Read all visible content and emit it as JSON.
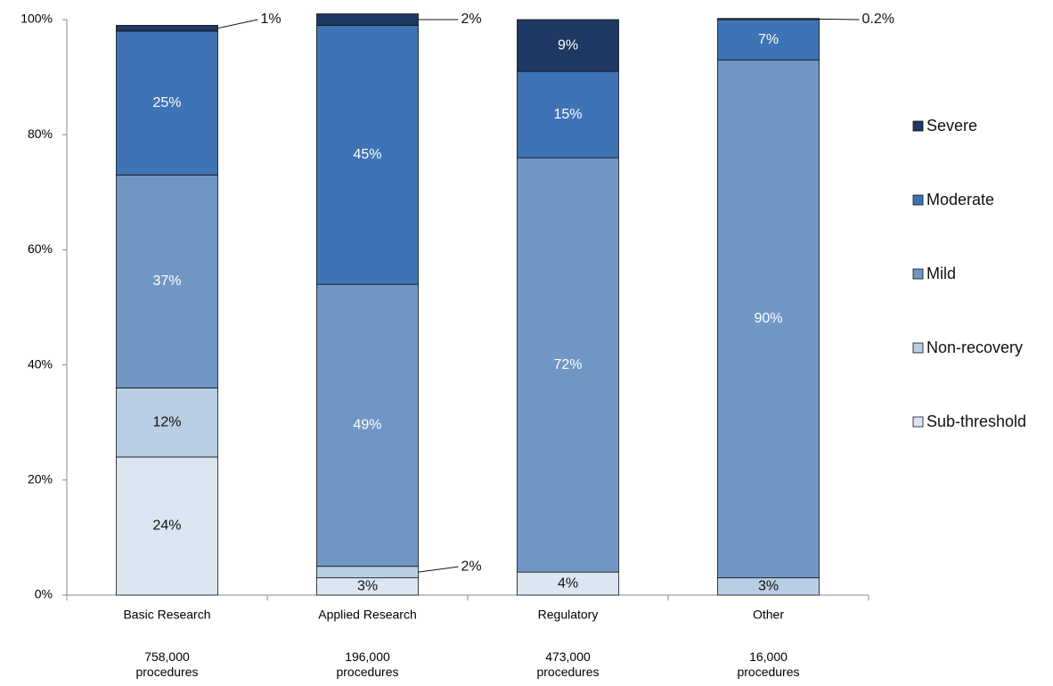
{
  "chart_data": {
    "type": "stacked_bar",
    "categories": [
      "Basic Research",
      "Applied Research",
      "Regulatory",
      "Other"
    ],
    "category_notes": [
      "758,000 procedures",
      "196,000 procedures",
      "473,000 procedures",
      "16,000 procedures"
    ],
    "series": [
      {
        "name": "Sub-threshold",
        "color": "#dce6f2",
        "values": [
          24,
          3,
          4,
          null
        ],
        "value_labels": [
          "24%",
          "3%",
          "4%",
          null
        ]
      },
      {
        "name": "Non-recovery",
        "color": "#b9cde5",
        "values": [
          12,
          2,
          null,
          3
        ],
        "value_labels": [
          "12%",
          "2%",
          null,
          "3%"
        ]
      },
      {
        "name": "Mild",
        "color": "#7096c4",
        "values": [
          37,
          49,
          72,
          90
        ],
        "value_labels": [
          "37%",
          "49%",
          "72%",
          "90%"
        ]
      },
      {
        "name": "Moderate",
        "color": "#3e73b5",
        "values": [
          25,
          45,
          15,
          7
        ],
        "value_labels": [
          "25%",
          "45%",
          "15%",
          "7%"
        ]
      },
      {
        "name": "Severe",
        "color": "#1f3763",
        "values": [
          1,
          2,
          9,
          0.2
        ],
        "value_labels": [
          "1%",
          "2%",
          "9%",
          "0.2%"
        ]
      }
    ],
    "ylim": [
      0,
      100
    ],
    "yticks": [
      {
        "value": 0,
        "label": "0%"
      },
      {
        "value": 20,
        "label": "20%"
      },
      {
        "value": 40,
        "label": "40%"
      },
      {
        "value": 60,
        "label": "60%"
      },
      {
        "value": 80,
        "label": "80%"
      },
      {
        "value": 100,
        "label": "100%"
      }
    ],
    "legend": "right"
  }
}
